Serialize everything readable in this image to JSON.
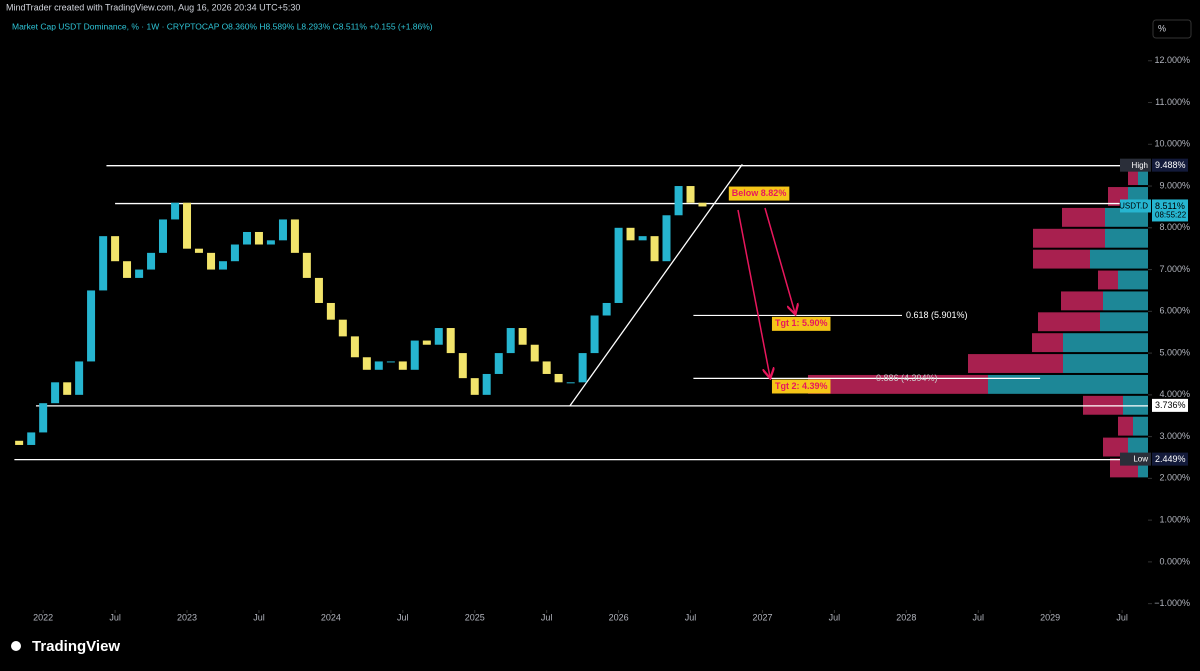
{
  "header": {
    "credit": "MindTrader created with TradingView.com, Aug 16, 2026 20:34 UTC+5:30",
    "legend": "Market Cap USDT Dominance, % · 1W · CRYPTOCAP  O8.360%  H8.589%  L8.293%  C8.511%  +0.155 (+1.86%)",
    "scale_button": "%",
    "logo": "TradingView"
  },
  "chart_data": {
    "type": "candlestick",
    "x": [
      2021.75,
      2021.833,
      2021.917,
      2022,
      2022.083,
      2022.167,
      2022.25,
      2022.333,
      2022.417,
      2022.5,
      2022.583,
      2022.667,
      2022.75,
      2022.833,
      2022.917,
      2023,
      2023.083,
      2023.167,
      2023.25,
      2023.333,
      2023.417,
      2023.5,
      2023.583,
      2023.667,
      2023.75,
      2023.833,
      2023.917,
      2024,
      2024.083,
      2024.167,
      2024.25,
      2024.333,
      2024.417,
      2024.5,
      2024.583,
      2024.667,
      2024.75,
      2024.833,
      2024.917,
      2025,
      2025.083,
      2025.167,
      2025.25,
      2025.333,
      2025.417,
      2025.5,
      2025.583,
      2025.667,
      2025.75,
      2025.833,
      2025.917,
      2026,
      2026.083,
      2026.167,
      2026.25,
      2026.333,
      2026.417,
      2026.5,
      2026.583
    ],
    "values": [
      2.9,
      2.8,
      3.1,
      3.8,
      4.3,
      4.0,
      4.8,
      6.5,
      7.8,
      7.2,
      6.8,
      7.0,
      7.4,
      8.2,
      8.6,
      7.5,
      7.4,
      7.0,
      7.2,
      7.6,
      7.9,
      7.6,
      7.7,
      8.2,
      7.4,
      6.8,
      6.2,
      5.8,
      5.4,
      4.9,
      4.6,
      4.8,
      4.8,
      4.6,
      5.3,
      5.2,
      5.6,
      5.0,
      4.4,
      4.0,
      4.5,
      5.0,
      5.6,
      5.2,
      4.8,
      4.5,
      4.3,
      4.3,
      5.0,
      5.9,
      6.2,
      8.0,
      7.7,
      7.8,
      7.2,
      8.3,
      9.0,
      8.6,
      8.511
    ],
    "up_color": "#26b5d0",
    "down_color": "#f2e46b",
    "xlim": [
      2021.7,
      2029.68
    ],
    "ylim": [
      -1.2,
      13.0
    ],
    "xticks": [
      {
        "value": 2022,
        "label": "2022"
      },
      {
        "value": 2022.5,
        "label": "Jul"
      },
      {
        "value": 2023,
        "label": "2023"
      },
      {
        "value": 2023.5,
        "label": "Jul"
      },
      {
        "value": 2024,
        "label": "2024"
      },
      {
        "value": 2024.5,
        "label": "Jul"
      },
      {
        "value": 2025,
        "label": "2025"
      },
      {
        "value": 2025.5,
        "label": "Jul"
      },
      {
        "value": 2026,
        "label": "2026"
      },
      {
        "value": 2026.5,
        "label": "Jul"
      },
      {
        "value": 2027,
        "label": "2027"
      },
      {
        "value": 2027.5,
        "label": "Jul"
      },
      {
        "value": 2028,
        "label": "2028"
      },
      {
        "value": 2028.5,
        "label": "Jul"
      },
      {
        "value": 2029,
        "label": "2029"
      },
      {
        "value": 2029.5,
        "label": "Jul"
      }
    ],
    "yticks": [
      {
        "value": 12,
        "label": "12.000%"
      },
      {
        "value": 11,
        "label": "11.000%"
      },
      {
        "value": 10,
        "label": "10.000%"
      },
      {
        "value": 9,
        "label": "9.000%"
      },
      {
        "value": 8,
        "label": "8.000%"
      },
      {
        "value": 7,
        "label": "7.000%"
      },
      {
        "value": 6,
        "label": "6.000%"
      },
      {
        "value": 5,
        "label": "5.000%"
      },
      {
        "value": 4,
        "label": "4.000%"
      },
      {
        "value": 3,
        "label": "3.000%"
      },
      {
        "value": 2,
        "label": "2.000%"
      },
      {
        "value": 1,
        "label": "1.000%"
      },
      {
        "value": 0,
        "label": "0.000%"
      },
      {
        "value": -1,
        "label": "−1.000%"
      }
    ],
    "levels": [
      {
        "value": 9.488,
        "x": [
          2022.44,
          2029.68
        ]
      },
      {
        "value": 8.58,
        "x": [
          2022.5,
          2029.68
        ]
      },
      {
        "value": 3.736,
        "x": [
          2021.95,
          2029.68
        ]
      },
      {
        "value": 2.449,
        "x": [
          2021.8,
          2029.68
        ]
      }
    ],
    "trendline": {
      "x": [
        2025.66,
        2026.86
      ],
      "y": [
        3.73,
        9.52
      ]
    },
    "fibs": [
      {
        "value": 5.901,
        "label": "0.618 (5.901%)",
        "x": [
          2026.52,
          2027.97
        ]
      },
      {
        "value": 4.394,
        "label": "0.886 (4.394%)",
        "x": [
          2026.52,
          2028.93
        ]
      }
    ],
    "annotations": [
      {
        "text": "Below 8.82%",
        "value": 8.82,
        "x": 2026.78
      },
      {
        "text": "Tgt 1: 5.90%",
        "value": 5.7,
        "x": 2027.08
      },
      {
        "text": "Tgt 2: 4.39%",
        "value": 4.2,
        "x": 2027.08
      }
    ],
    "price_tags": [
      {
        "name": "High",
        "label": "9.488%",
        "value": 9.488
      },
      {
        "name": "USDT.D",
        "label": "8.511%",
        "value": 8.511,
        "countdown": "08:55:22"
      },
      {
        "label": "3.736%",
        "value": 3.736
      },
      {
        "name": "Low",
        "label": "2.449%",
        "value": 2.449
      }
    ],
    "volume_profile": {
      "bins": [
        2.0,
        2.5,
        3.0,
        3.5,
        4.0,
        4.5,
        5.0,
        5.5,
        6.0,
        6.5,
        7.0,
        7.5,
        8.0,
        8.5,
        9.0,
        9.5
      ],
      "up": [
        10,
        20,
        15,
        25,
        160,
        85,
        85,
        48,
        45,
        30,
        58,
        43,
        43,
        20,
        10
      ],
      "down": [
        28,
        25,
        15,
        40,
        180,
        95,
        31,
        62,
        42,
        20,
        57,
        72,
        43,
        20,
        10
      ],
      "up_color": "#1d8797",
      "down_color": "#a8204f"
    }
  }
}
